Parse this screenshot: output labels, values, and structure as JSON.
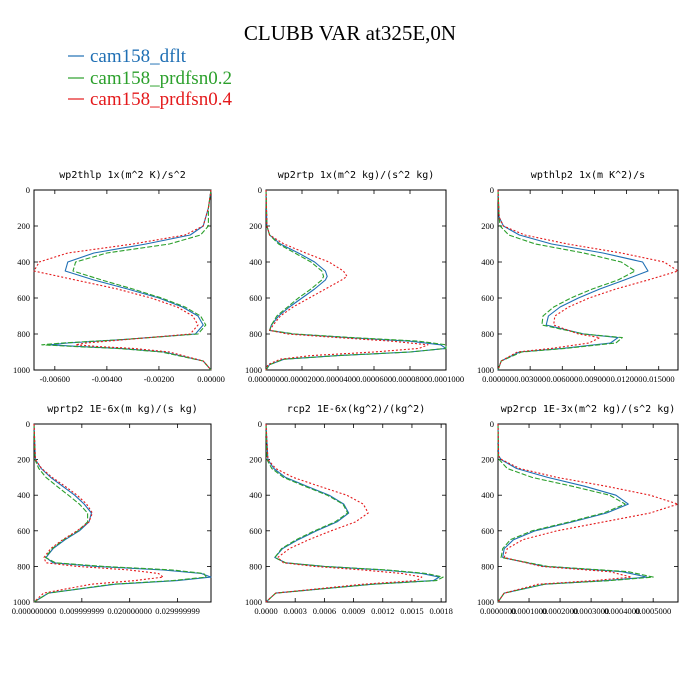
{
  "title": "CLUBB VAR at325E,0N",
  "legend": [
    {
      "label": "cam158_dflt",
      "color": "#1f6fb4",
      "dash": ""
    },
    {
      "label": "cam158_prdfsn0.2",
      "color": "#2ca02c",
      "dash": "5,2"
    },
    {
      "label": "cam158_prdfsn0.4",
      "color": "#e41a1c",
      "dash": "2,2"
    }
  ],
  "chart_data": [
    {
      "type": "line",
      "title": "wp2thlp   1x(m^2 K)/s^2",
      "xlim": [
        -0.0068,
        0.0
      ],
      "ylim": [
        1000,
        0
      ],
      "xticks": [
        -0.006,
        -0.004,
        -0.002,
        0.0
      ],
      "xtick_labels": [
        "-0.00600",
        "-0.00400",
        "-0.00200",
        "0.00000"
      ],
      "yticks": [
        0,
        200,
        400,
        600,
        800,
        1000
      ],
      "ytick_labels": [
        "0",
        "200",
        "400",
        "600",
        "800",
        "1000"
      ],
      "y": [
        0,
        100,
        200,
        250,
        300,
        350,
        400,
        450,
        500,
        550,
        600,
        650,
        700,
        750,
        800,
        830,
        850,
        860,
        870,
        880,
        900,
        950,
        1000
      ],
      "series": [
        {
          "name": "cam158_dflt",
          "values": [
            0,
            -0.0001,
            -0.0003,
            -0.0008,
            -0.0025,
            -0.0045,
            -0.0055,
            -0.0056,
            -0.0045,
            -0.0032,
            -0.002,
            -0.0011,
            -0.0005,
            -0.0003,
            -0.0006,
            -0.0033,
            -0.0055,
            -0.0062,
            -0.005,
            -0.0035,
            -0.0018,
            -0.0003,
            0
          ]
        },
        {
          "name": "cam158_prdfsn0.2",
          "values": [
            0,
            -0.0001,
            -0.0001,
            -0.0004,
            -0.0016,
            -0.004,
            -0.0052,
            -0.0053,
            -0.0042,
            -0.003,
            -0.0019,
            -0.001,
            -0.0004,
            -0.0002,
            -0.0005,
            -0.0033,
            -0.0057,
            -0.0065,
            -0.0052,
            -0.0036,
            -0.0019,
            -0.0003,
            0
          ]
        },
        {
          "name": "cam158_prdfsn0.4",
          "values": [
            0,
            -0.0001,
            -0.0003,
            -0.001,
            -0.003,
            -0.0055,
            -0.0066,
            -0.0068,
            -0.0052,
            -0.0036,
            -0.0023,
            -0.0013,
            -0.0007,
            -0.0005,
            -0.0008,
            -0.0032,
            -0.0048,
            -0.0052,
            -0.0043,
            -0.003,
            -0.0016,
            -0.0003,
            0
          ]
        }
      ]
    },
    {
      "type": "line",
      "title": "wp2rtp   1x(m^2 kg)/(s^2 kg)",
      "xlim": [
        0.0,
        0.0001
      ],
      "ylim": [
        1000,
        0
      ],
      "xticks": [
        0.0,
        2e-05,
        4e-05,
        6e-05,
        8e-05,
        0.0001
      ],
      "xtick_labels": [
        "0.0000000",
        "0.0000200",
        "0.0000400",
        "0.0000600",
        "0.0000800",
        "0.0001000"
      ],
      "yticks": [
        0,
        200,
        400,
        600,
        800,
        1000
      ],
      "ytick_labels": [
        "0",
        "200",
        "400",
        "600",
        "800",
        "1000"
      ],
      "y": [
        0,
        200,
        250,
        300,
        350,
        400,
        450,
        480,
        500,
        550,
        600,
        650,
        700,
        750,
        780,
        800,
        820,
        840,
        860,
        880,
        900,
        920,
        940,
        970,
        1000
      ],
      "series": [
        {
          "name": "cam158_dflt",
          "values": [
            0,
            5e-07,
            2e-06,
            8e-06,
            1.8e-05,
            2.7e-05,
            3.3e-05,
            3.4e-05,
            3.3e-05,
            2.7e-05,
            2e-05,
            1.3e-05,
            7e-06,
            3e-06,
            2e-06,
            1.5e-05,
            4.5e-05,
            8e-05,
            9.7e-05,
            0.0001,
            8e-05,
            4e-05,
            1e-05,
            2e-06,
            0
          ]
        },
        {
          "name": "cam158_prdfsn0.2",
          "values": [
            0,
            5e-07,
            2e-06,
            7e-06,
            1.6e-05,
            2.5e-05,
            3.1e-05,
            3.2e-05,
            3.1e-05,
            2.5e-05,
            1.8e-05,
            1.2e-05,
            6e-06,
            3e-06,
            2e-06,
            1.6e-05,
            4.8e-05,
            8.5e-05,
            0.0001,
            0.0001,
            8e-05,
            4e-05,
            1e-05,
            2e-06,
            0
          ]
        },
        {
          "name": "cam158_prdfsn0.4",
          "values": [
            0,
            5e-07,
            2e-06,
            1e-05,
            2.2e-05,
            3.5e-05,
            4.3e-05,
            4.5e-05,
            4.2e-05,
            3.3e-05,
            2.4e-05,
            1.5e-05,
            8e-06,
            4e-06,
            2e-06,
            1.2e-05,
            4e-05,
            7e-05,
            9e-05,
            8.5e-05,
            6e-05,
            2.5e-05,
            8e-06,
            1e-06,
            0
          ]
        }
      ]
    },
    {
      "type": "line",
      "title": "wpthlp2   1x(m K^2)/s",
      "xlim": [
        0.0,
        0.0168
      ],
      "ylim": [
        1000,
        0
      ],
      "xticks": [
        0.0,
        0.003,
        0.006,
        0.009,
        0.012,
        0.015
      ],
      "xtick_labels": [
        "0.000000",
        "0.003000",
        "0.006000",
        "0.009000",
        "0.012000",
        "0.015000"
      ],
      "yticks": [
        0,
        200,
        400,
        600,
        800,
        1000
      ],
      "ytick_labels": [
        "0",
        "200",
        "400",
        "600",
        "800",
        "1000"
      ],
      "y": [
        0,
        150,
        200,
        250,
        300,
        350,
        400,
        450,
        500,
        550,
        600,
        650,
        700,
        750,
        800,
        820,
        850,
        880,
        900,
        950,
        1000
      ],
      "series": [
        {
          "name": "cam158_dflt",
          "values": [
            0,
            0.0001,
            0.0005,
            0.002,
            0.005,
            0.0098,
            0.0135,
            0.014,
            0.0118,
            0.0095,
            0.0075,
            0.0058,
            0.0047,
            0.0045,
            0.008,
            0.0112,
            0.0105,
            0.006,
            0.002,
            0.0003,
            0
          ]
        },
        {
          "name": "cam158_prdfsn0.2",
          "values": [
            0,
            0.0001,
            0.0002,
            0.001,
            0.0035,
            0.008,
            0.0115,
            0.0128,
            0.0112,
            0.0088,
            0.0068,
            0.0052,
            0.0042,
            0.0041,
            0.008,
            0.0116,
            0.011,
            0.0063,
            0.0022,
            0.0003,
            0
          ]
        },
        {
          "name": "cam158_prdfsn0.4",
          "values": [
            0,
            0.0001,
            0.0005,
            0.0025,
            0.0065,
            0.0115,
            0.0155,
            0.0168,
            0.014,
            0.011,
            0.0085,
            0.0066,
            0.0053,
            0.0052,
            0.0075,
            0.0095,
            0.0085,
            0.005,
            0.0018,
            0.0003,
            0
          ]
        }
      ]
    },
    {
      "type": "line",
      "title": "wprtp2   1E-6x(m kg)/(s kg)",
      "xlim": [
        0.0,
        0.037
      ],
      "ylim": [
        1000,
        0
      ],
      "xticks": [
        0.0,
        0.0099999,
        0.0199999,
        0.0299999
      ],
      "xtick_labels": [
        "0.000000000",
        "0.009999999",
        "0.020000000",
        "0.029999999"
      ],
      "yticks": [
        0,
        200,
        400,
        600,
        800,
        1000
      ],
      "ytick_labels": [
        "0",
        "200",
        "400",
        "600",
        "800",
        "1000"
      ],
      "y": [
        0,
        200,
        250,
        300,
        350,
        400,
        450,
        500,
        550,
        600,
        650,
        700,
        750,
        780,
        800,
        820,
        840,
        860,
        880,
        900,
        950,
        1000
      ],
      "series": [
        {
          "name": "cam158_dflt",
          "values": [
            0,
            0.0003,
            0.0015,
            0.0035,
            0.006,
            0.0085,
            0.0105,
            0.012,
            0.0115,
            0.0095,
            0.0065,
            0.004,
            0.0025,
            0.004,
            0.013,
            0.027,
            0.035,
            0.037,
            0.03,
            0.017,
            0.003,
            0
          ]
        },
        {
          "name": "cam158_prdfsn0.2",
          "values": [
            0,
            0.0002,
            0.001,
            0.0025,
            0.0048,
            0.0072,
            0.0095,
            0.0112,
            0.0112,
            0.0092,
            0.0062,
            0.0038,
            0.0024,
            0.0045,
            0.0145,
            0.029,
            0.0355,
            0.036,
            0.029,
            0.0165,
            0.003,
            0
          ]
        },
        {
          "name": "cam158_prdfsn0.4",
          "values": [
            0,
            0.0003,
            0.0016,
            0.0038,
            0.0065,
            0.009,
            0.011,
            0.0122,
            0.0115,
            0.009,
            0.006,
            0.0035,
            0.0021,
            0.0025,
            0.009,
            0.02,
            0.026,
            0.027,
            0.021,
            0.012,
            0.002,
            0
          ]
        }
      ]
    },
    {
      "type": "line",
      "title": "rcp2   1E-6x(kg^2)/(kg^2)",
      "xlim": [
        0.0,
        0.00185
      ],
      "ylim": [
        1000,
        0
      ],
      "xticks": [
        0.0,
        0.0003,
        0.0006,
        0.0009,
        0.0012,
        0.0015,
        0.0018
      ],
      "xtick_labels": [
        "0.0000",
        "0.0003",
        "0.0006",
        "0.0009",
        "0.0012",
        "0.0015",
        "0.0018"
      ],
      "yticks": [
        0,
        200,
        400,
        600,
        800,
        1000
      ],
      "ytick_labels": [
        "0",
        "200",
        "400",
        "600",
        "800",
        "1000"
      ],
      "y": [
        0,
        200,
        250,
        300,
        350,
        400,
        450,
        500,
        550,
        600,
        650,
        700,
        750,
        780,
        800,
        820,
        840,
        860,
        880,
        900,
        950,
        1000
      ],
      "series": [
        {
          "name": "cam158_dflt",
          "values": [
            0,
            2e-05,
            8e-05,
            0.0002,
            0.00042,
            0.00065,
            0.0008,
            0.00085,
            0.00073,
            0.00052,
            0.00033,
            0.00017,
            9e-05,
            0.0002,
            0.0006,
            0.0012,
            0.0016,
            0.00178,
            0.00172,
            0.0011,
            0.0001,
            0
          ]
        },
        {
          "name": "cam158_prdfsn0.2",
          "values": [
            0,
            1e-05,
            6e-05,
            0.00018,
            0.0004,
            0.00063,
            0.00079,
            0.00084,
            0.00071,
            0.0005,
            0.00031,
            0.00016,
            9e-05,
            0.0002,
            0.0006,
            0.00125,
            0.00165,
            0.00182,
            0.00175,
            0.0011,
            0.0001,
            0
          ]
        },
        {
          "name": "cam158_prdfsn0.4",
          "values": [
            0,
            2e-05,
            0.0001,
            0.00028,
            0.00055,
            0.00083,
            0.001,
            0.00105,
            0.00092,
            0.00067,
            0.00044,
            0.00024,
            0.00012,
            0.00018,
            0.0005,
            0.001,
            0.0014,
            0.0016,
            0.00155,
            0.001,
            0.0001,
            0
          ]
        }
      ]
    },
    {
      "type": "line",
      "title": "wp2rcp   1E-3x(m^2 kg)/(s^2 kg)",
      "xlim": [
        0.0,
        0.00058
      ],
      "ylim": [
        1000,
        0
      ],
      "xticks": [
        0.0,
        0.0001,
        0.0002,
        0.0003,
        0.0004,
        0.0005
      ],
      "xtick_labels": [
        "0.0000000",
        "0.0001000",
        "0.0002000",
        "0.0003000",
        "0.0004000",
        "0.0005000"
      ],
      "yticks": [
        0,
        200,
        400,
        600,
        800,
        1000
      ],
      "ytick_labels": [
        "0",
        "200",
        "400",
        "600",
        "800",
        "1000"
      ],
      "y": [
        0,
        180,
        200,
        250,
        300,
        350,
        400,
        450,
        500,
        550,
        600,
        650,
        700,
        750,
        800,
        830,
        860,
        880,
        900,
        950,
        1000
      ],
      "series": [
        {
          "name": "cam158_dflt",
          "values": [
            0,
            2e-06,
            1e-05,
            6e-05,
            0.00016,
            0.00028,
            0.00038,
            0.00042,
            0.00035,
            0.00024,
            0.00012,
            5e-05,
            2e-05,
            1.5e-05,
            0.00015,
            0.0004,
            0.00048,
            0.00035,
            0.00015,
            2e-05,
            0
          ]
        },
        {
          "name": "cam158_prdfsn0.2",
          "values": [
            0,
            1e-06,
            4e-06,
            3e-05,
            0.00011,
            0.00024,
            0.00036,
            0.00041,
            0.00034,
            0.00023,
            0.00011,
            4e-05,
            1.5e-05,
            1e-05,
            0.00016,
            0.00042,
            0.0005,
            0.00036,
            0.00015,
            2e-05,
            0
          ]
        },
        {
          "name": "cam158_prdfsn0.4",
          "values": [
            0,
            2e-06,
            1.2e-05,
            7e-05,
            0.00019,
            0.00035,
            0.00049,
            0.00058,
            0.00049,
            0.00034,
            0.00019,
            8e-05,
            3e-05,
            2e-05,
            0.00014,
            0.00036,
            0.00043,
            0.00031,
            0.00013,
            2e-05,
            0
          ]
        }
      ]
    }
  ]
}
